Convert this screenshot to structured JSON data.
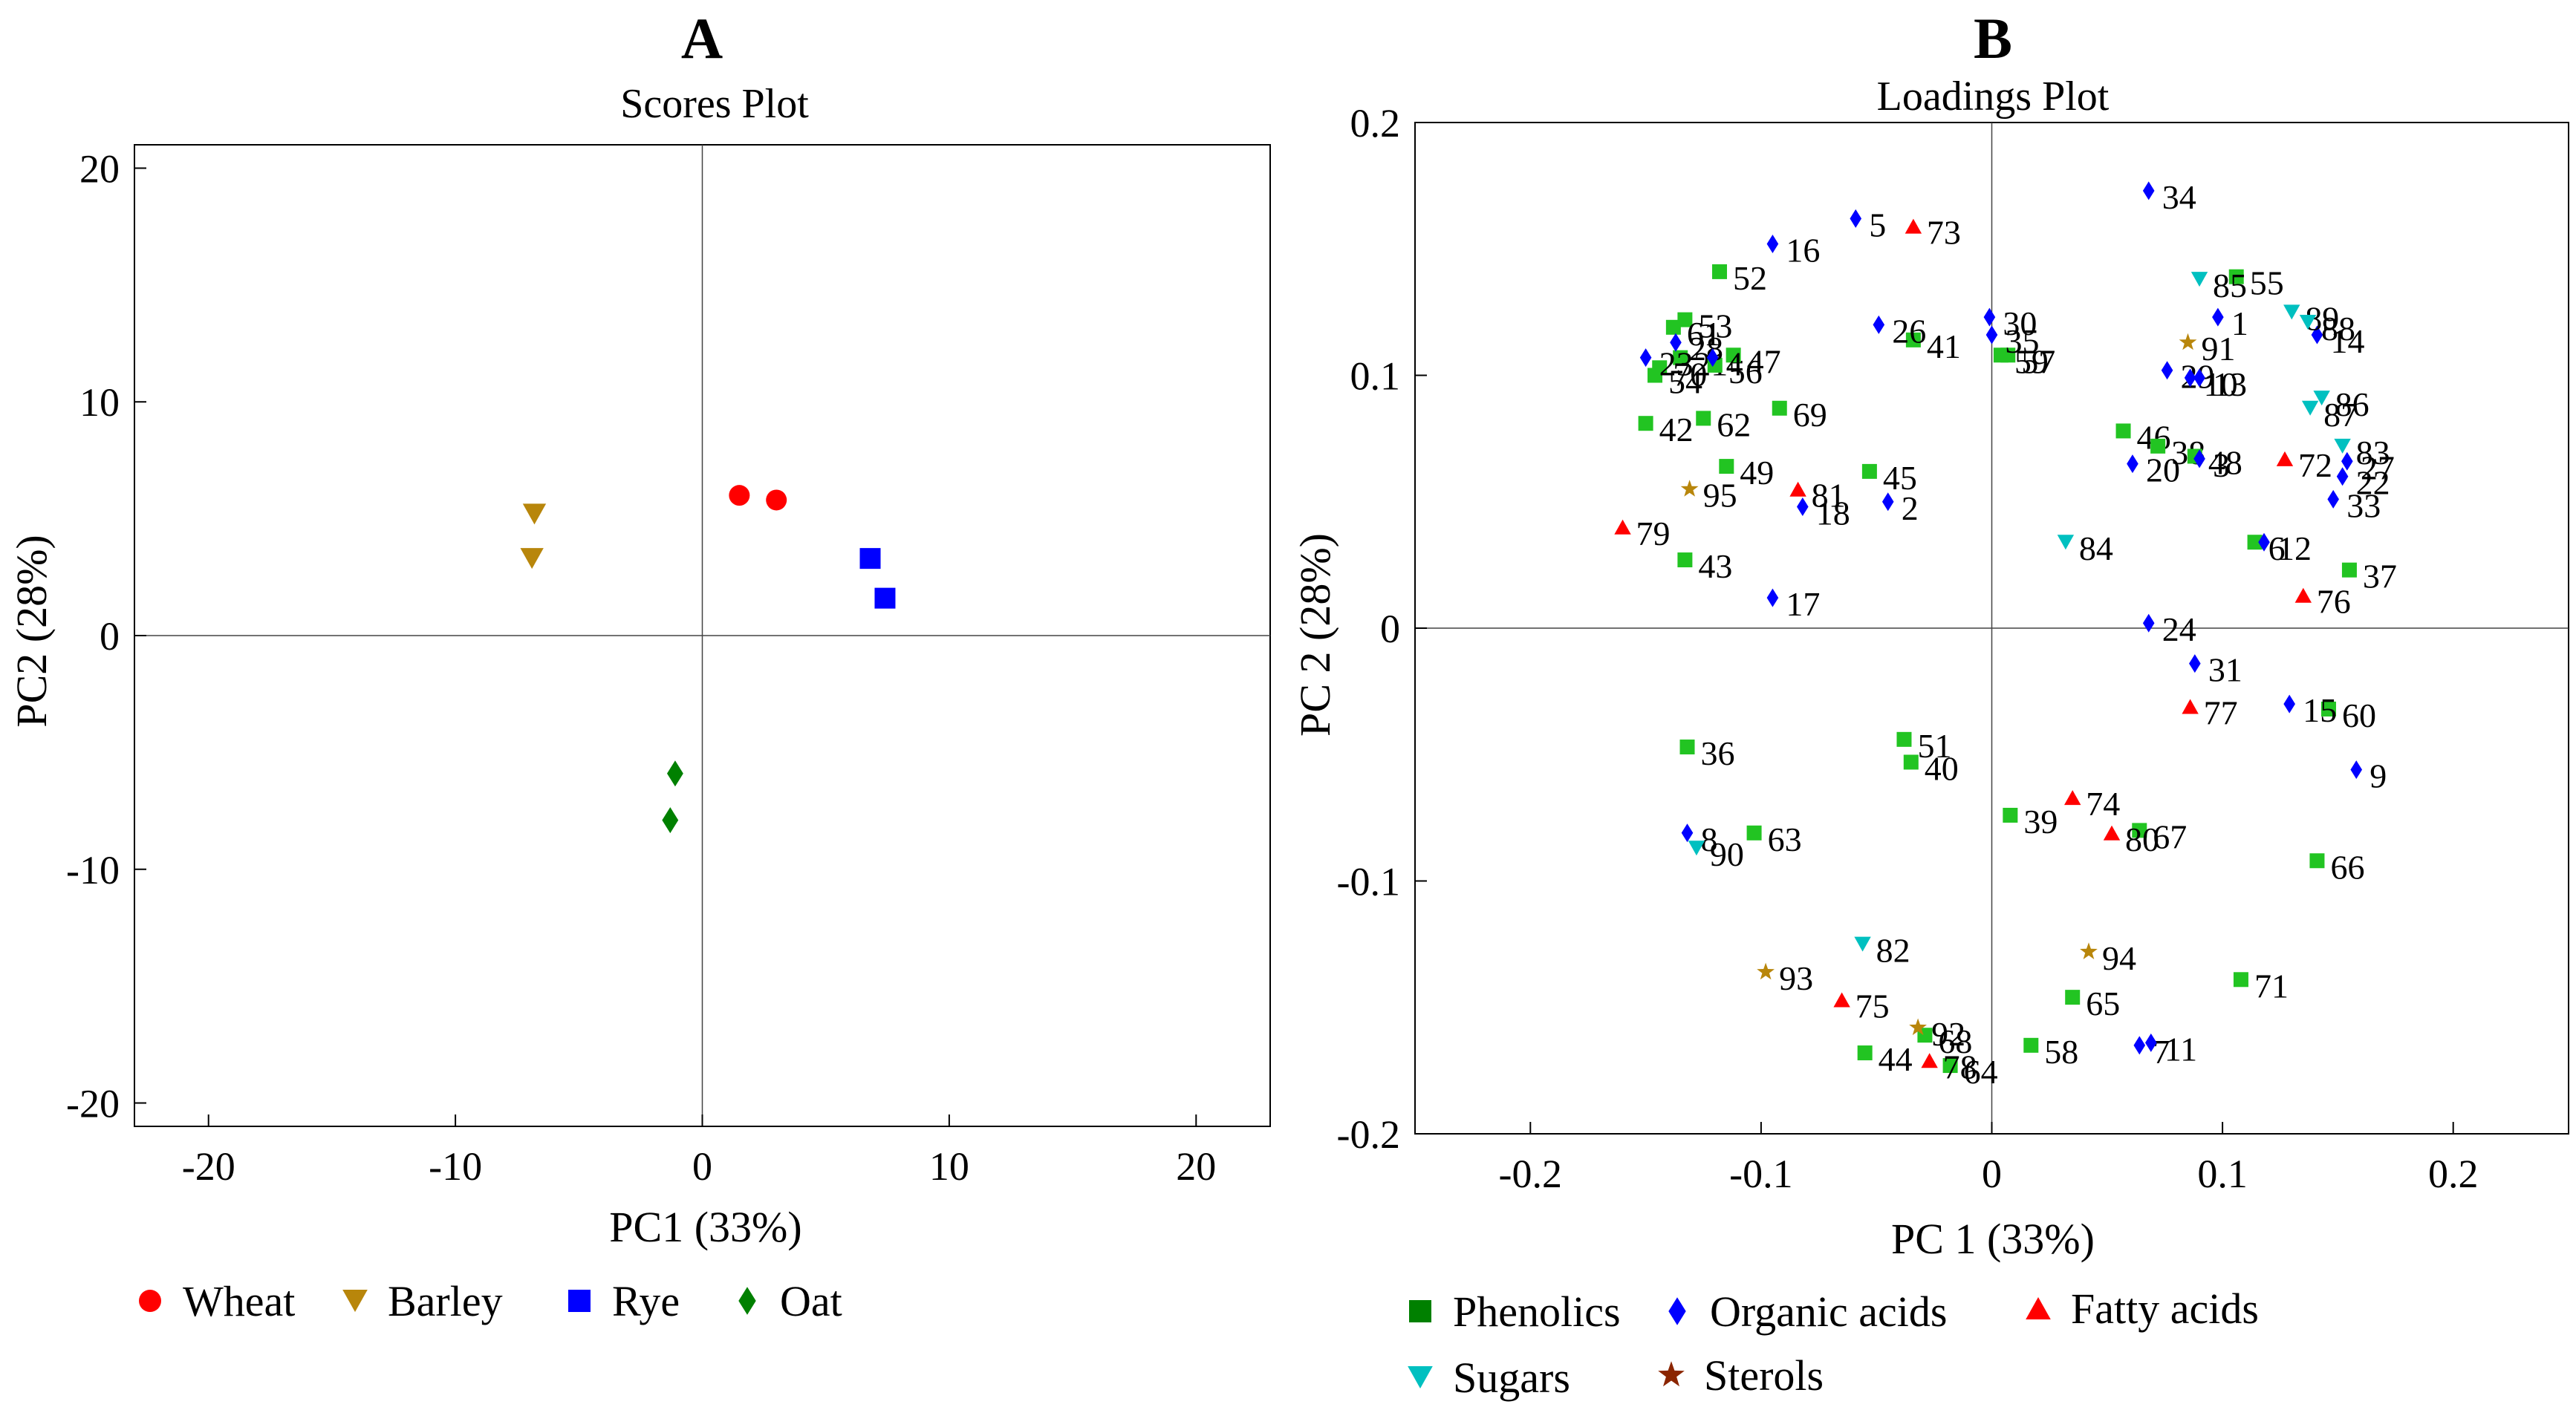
{
  "panels": [
    {
      "letter": "A",
      "chart_data": {
        "type": "scatter",
        "title": "Scores Plot",
        "xlabel": "PC1 (33%)",
        "ylabel": "PC2  (28%)",
        "xlim": [
          -23,
          23
        ],
        "ylim": [
          -21,
          21
        ],
        "xticks": [
          -20,
          -10,
          0,
          10,
          20
        ],
        "yticks": [
          -20,
          -10,
          0,
          10,
          20
        ],
        "tick_labels_x": [
          "-20",
          "-10",
          "0",
          "10",
          "20"
        ],
        "tick_labels_y": [
          "-20",
          "-10",
          "0",
          "10",
          "20"
        ],
        "grid": false,
        "zero_lines": true,
        "legend_position": "bottom",
        "series": [
          {
            "name": "Wheat",
            "marker": "circle",
            "color": "#ff0000",
            "points": [
              [
                1.5,
                6.0
              ],
              [
                3.0,
                5.8
              ]
            ]
          },
          {
            "name": "Barley",
            "marker": "triangle-down",
            "color": "#b8860b",
            "points": [
              [
                -6.8,
                5.2
              ],
              [
                -6.9,
                3.3
              ]
            ]
          },
          {
            "name": "Rye",
            "marker": "square",
            "color": "#0000ff",
            "points": [
              [
                6.8,
                3.3
              ],
              [
                7.4,
                1.6
              ]
            ]
          },
          {
            "name": "Oat",
            "marker": "diamond",
            "color": "#008000",
            "points": [
              [
                -1.1,
                -5.9
              ],
              [
                -1.3,
                -7.9
              ]
            ]
          }
        ]
      }
    },
    {
      "letter": "B",
      "chart_data": {
        "type": "scatter",
        "title": "Loadings Plot",
        "xlabel": "PC 1 (33%)",
        "ylabel": "PC 2 (28%)",
        "xlim": [
          -0.25,
          0.25
        ],
        "ylim": [
          -0.2,
          0.2
        ],
        "xticks": [
          -0.2,
          -0.1,
          0,
          0.1,
          0.2
        ],
        "yticks": [
          -0.2,
          -0.1,
          0,
          0.1,
          0.2
        ],
        "tick_labels_x": [
          "-0.2",
          "-0.1",
          "0",
          "0.1",
          "0.2"
        ],
        "tick_labels_y": [
          "-0.2",
          "-0.1",
          "0",
          "0.1",
          "0.2"
        ],
        "grid": false,
        "zero_lines": true,
        "legend_position": "bottom",
        "series": [
          {
            "name": "Phenolics",
            "marker": "square",
            "color": "#22c422",
            "legend_color": "#008000",
            "points": [
              {
                "x": -0.118,
                "y": 0.141,
                "label": "52"
              },
              {
                "x": -0.133,
                "y": 0.122,
                "label": "53"
              },
              {
                "x": -0.138,
                "y": 0.119,
                "label": "61"
              },
              {
                "x": -0.135,
                "y": 0.107,
                "label": "21"
              },
              {
                "x": -0.146,
                "y": 0.1,
                "label": "54"
              },
              {
                "x": -0.144,
                "y": 0.103,
                "label": "70"
              },
              {
                "x": -0.12,
                "y": 0.104,
                "label": "56"
              },
              {
                "x": -0.112,
                "y": 0.108,
                "label": "47"
              },
              {
                "x": -0.15,
                "y": 0.081,
                "label": "42"
              },
              {
                "x": -0.125,
                "y": 0.083,
                "label": "62"
              },
              {
                "x": -0.092,
                "y": 0.087,
                "label": "69"
              },
              {
                "x": -0.115,
                "y": 0.064,
                "label": "49"
              },
              {
                "x": -0.133,
                "y": 0.027,
                "label": "43"
              },
              {
                "x": -0.034,
                "y": 0.114,
                "label": "41"
              },
              {
                "x": -0.053,
                "y": 0.062,
                "label": "45"
              },
              {
                "x": 0.004,
                "y": 0.108,
                "label": "59"
              },
              {
                "x": 0.007,
                "y": 0.108,
                "label": "57"
              },
              {
                "x": 0.057,
                "y": 0.078,
                "label": "46"
              },
              {
                "x": 0.072,
                "y": 0.072,
                "label": "38"
              },
              {
                "x": 0.088,
                "y": 0.068,
                "label": "48"
              },
              {
                "x": 0.106,
                "y": 0.139,
                "label": "55"
              },
              {
                "x": 0.114,
                "y": 0.034,
                "label": "6"
              },
              {
                "x": 0.155,
                "y": 0.023,
                "label": "37"
              },
              {
                "x": 0.146,
                "y": -0.032,
                "label": "60"
              },
              {
                "x": 0.141,
                "y": -0.092,
                "label": "66"
              },
              {
                "x": -0.132,
                "y": -0.047,
                "label": "36"
              },
              {
                "x": -0.038,
                "y": -0.044,
                "label": "51"
              },
              {
                "x": -0.035,
                "y": -0.053,
                "label": "40"
              },
              {
                "x": -0.103,
                "y": -0.081,
                "label": "63"
              },
              {
                "x": 0.008,
                "y": -0.074,
                "label": "39"
              },
              {
                "x": 0.064,
                "y": -0.08,
                "label": "67"
              },
              {
                "x": 0.108,
                "y": -0.139,
                "label": "71"
              },
              {
                "x": 0.035,
                "y": -0.146,
                "label": "65"
              },
              {
                "x": 0.017,
                "y": -0.165,
                "label": "58"
              },
              {
                "x": -0.029,
                "y": -0.161,
                "label": "68"
              },
              {
                "x": -0.055,
                "y": -0.168,
                "label": "44"
              },
              {
                "x": -0.018,
                "y": -0.173,
                "label": "64"
              }
            ]
          },
          {
            "name": "Organic acids",
            "marker": "diamond",
            "color": "#0000ff",
            "points": [
              {
                "x": -0.059,
                "y": 0.162,
                "label": "5"
              },
              {
                "x": -0.095,
                "y": 0.152,
                "label": "16"
              },
              {
                "x": -0.15,
                "y": 0.107,
                "label": "23"
              },
              {
                "x": -0.137,
                "y": 0.113,
                "label": "28"
              },
              {
                "x": -0.121,
                "y": 0.107,
                "label": "4"
              },
              {
                "x": -0.049,
                "y": 0.12,
                "label": "26"
              },
              {
                "x": -0.082,
                "y": 0.048,
                "label": "18"
              },
              {
                "x": -0.045,
                "y": 0.05,
                "label": "2"
              },
              {
                "x": -0.095,
                "y": 0.012,
                "label": "17"
              },
              {
                "x": -0.001,
                "y": 0.123,
                "label": "30"
              },
              {
                "x": 0.0,
                "y": 0.116,
                "label": "35"
              },
              {
                "x": 0.068,
                "y": 0.173,
                "label": "34"
              },
              {
                "x": 0.098,
                "y": 0.123,
                "label": "1"
              },
              {
                "x": 0.141,
                "y": 0.116,
                "label": "14"
              },
              {
                "x": 0.076,
                "y": 0.102,
                "label": "29"
              },
              {
                "x": 0.086,
                "y": 0.099,
                "label": "10"
              },
              {
                "x": 0.09,
                "y": 0.099,
                "label": "13"
              },
              {
                "x": 0.061,
                "y": 0.065,
                "label": "20"
              },
              {
                "x": 0.09,
                "y": 0.067,
                "label": "3"
              },
              {
                "x": 0.118,
                "y": 0.034,
                "label": "12"
              },
              {
                "x": 0.148,
                "y": 0.051,
                "label": "33"
              },
              {
                "x": 0.152,
                "y": 0.06,
                "label": "22"
              },
              {
                "x": 0.154,
                "y": 0.066,
                "label": "27"
              },
              {
                "x": 0.068,
                "y": 0.002,
                "label": "24"
              },
              {
                "x": 0.088,
                "y": -0.014,
                "label": "31"
              },
              {
                "x": 0.129,
                "y": -0.03,
                "label": "15"
              },
              {
                "x": 0.158,
                "y": -0.056,
                "label": "9"
              },
              {
                "x": -0.132,
                "y": -0.081,
                "label": "8"
              },
              {
                "x": 0.064,
                "y": -0.165,
                "label": "7"
              },
              {
                "x": 0.069,
                "y": -0.164,
                "label": "11"
              }
            ]
          },
          {
            "name": "Fatty acids",
            "marker": "triangle-up",
            "color": "#ff0000",
            "points": [
              {
                "x": -0.034,
                "y": 0.159,
                "label": "73"
              },
              {
                "x": -0.084,
                "y": 0.055,
                "label": "81"
              },
              {
                "x": -0.16,
                "y": 0.04,
                "label": "79"
              },
              {
                "x": 0.127,
                "y": 0.067,
                "label": "72"
              },
              {
                "x": 0.135,
                "y": 0.013,
                "label": "76"
              },
              {
                "x": 0.086,
                "y": -0.031,
                "label": "77"
              },
              {
                "x": 0.035,
                "y": -0.067,
                "label": "74"
              },
              {
                "x": 0.052,
                "y": -0.081,
                "label": "80"
              },
              {
                "x": -0.065,
                "y": -0.147,
                "label": "75"
              },
              {
                "x": -0.027,
                "y": -0.171,
                "label": "78"
              }
            ]
          },
          {
            "name": "Sugars",
            "marker": "triangle-down",
            "color": "#00c0c0",
            "points": [
              {
                "x": 0.09,
                "y": 0.138,
                "label": "85"
              },
              {
                "x": 0.13,
                "y": 0.125,
                "label": "89"
              },
              {
                "x": 0.137,
                "y": 0.121,
                "label": "88"
              },
              {
                "x": 0.143,
                "y": 0.091,
                "label": "86"
              },
              {
                "x": 0.138,
                "y": 0.087,
                "label": "87"
              },
              {
                "x": 0.152,
                "y": 0.072,
                "label": "83"
              },
              {
                "x": 0.032,
                "y": 0.034,
                "label": "84"
              },
              {
                "x": -0.128,
                "y": -0.087,
                "label": "90"
              },
              {
                "x": -0.056,
                "y": -0.125,
                "label": "82"
              }
            ]
          },
          {
            "name": "Sterols",
            "marker": "star",
            "color": "#b8860b",
            "legend_color": "#8b2500",
            "points": [
              {
                "x": 0.085,
                "y": 0.113,
                "label": "91"
              },
              {
                "x": -0.131,
                "y": 0.055,
                "label": "95"
              },
              {
                "x": -0.098,
                "y": -0.136,
                "label": "93"
              },
              {
                "x": 0.042,
                "y": -0.128,
                "label": "94"
              },
              {
                "x": -0.032,
                "y": -0.158,
                "label": "92"
              }
            ]
          }
        ]
      }
    }
  ]
}
